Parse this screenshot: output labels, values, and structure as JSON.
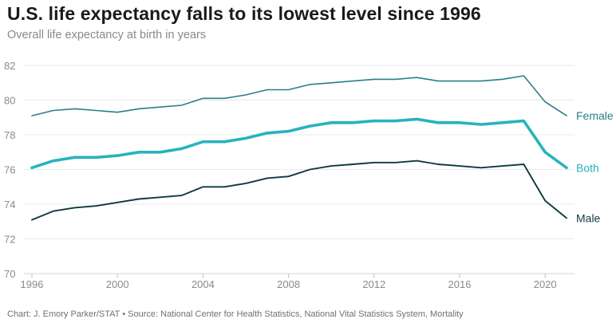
{
  "chart_data": {
    "type": "line",
    "title": "U.S. life expectancy falls to its lowest level since 1996",
    "subtitle": "Overall life expectancy at birth in years",
    "source": "Chart: J. Emory Parker/STAT • Source: National Center for Health Statistics, National Vital Statistics System, Mortality",
    "xlim": [
      1996,
      2021
    ],
    "ylim": [
      70,
      82
    ],
    "x_ticks": [
      1996,
      2000,
      2004,
      2008,
      2012,
      2016,
      2020
    ],
    "y_ticks": [
      70,
      72,
      74,
      76,
      78,
      80,
      82
    ],
    "grid": "horizontal",
    "x": [
      1996,
      1997,
      1998,
      1999,
      2000,
      2001,
      2002,
      2003,
      2004,
      2005,
      2006,
      2007,
      2008,
      2009,
      2010,
      2011,
      2012,
      2013,
      2014,
      2015,
      2016,
      2017,
      2018,
      2019,
      2020,
      2021
    ],
    "series": [
      {
        "name": "Female",
        "color": "#2a7f86",
        "values": [
          79.1,
          79.4,
          79.5,
          79.4,
          79.3,
          79.5,
          79.6,
          79.7,
          80.1,
          80.1,
          80.3,
          80.6,
          80.6,
          80.9,
          81.0,
          81.1,
          81.2,
          81.2,
          81.3,
          81.1,
          81.1,
          81.1,
          81.2,
          81.4,
          79.9,
          79.1
        ]
      },
      {
        "name": "Both",
        "color": "#27b3bc",
        "values": [
          76.1,
          76.5,
          76.7,
          76.7,
          76.8,
          77.0,
          77.0,
          77.2,
          77.6,
          77.6,
          77.8,
          78.1,
          78.2,
          78.5,
          78.7,
          78.7,
          78.8,
          78.8,
          78.9,
          78.7,
          78.7,
          78.6,
          78.7,
          78.8,
          77.0,
          76.1
        ]
      },
      {
        "name": "Male",
        "color": "#0f3940",
        "values": [
          73.1,
          73.6,
          73.8,
          73.9,
          74.1,
          74.3,
          74.4,
          74.5,
          75.0,
          75.0,
          75.2,
          75.5,
          75.6,
          76.0,
          76.2,
          76.3,
          76.4,
          76.4,
          76.5,
          76.3,
          76.2,
          76.1,
          76.2,
          76.3,
          74.2,
          73.2
        ]
      }
    ]
  }
}
